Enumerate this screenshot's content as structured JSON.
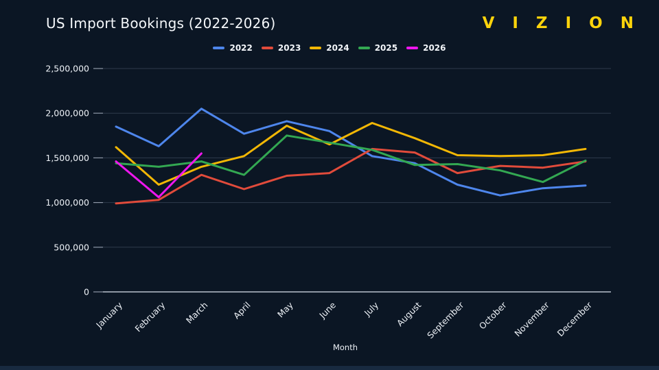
{
  "header": {
    "title": "US Import Bookings (2022-2026)",
    "logo": "V I Z I O N"
  },
  "colors": {
    "background": "#0b1624",
    "footer_strip": "#182a40",
    "grid": "#2f3b4c",
    "axis_line": "#b9c2ce",
    "tick": "#8f99a8",
    "label_text": "#eef2f7",
    "logo_yellow": "#fcd30b"
  },
  "chart_data": {
    "type": "line",
    "title": "US Import Bookings (2022-2026)",
    "xlabel": "Month",
    "ylabel": "",
    "x": [
      "January",
      "February",
      "March",
      "April",
      "May",
      "June",
      "July",
      "August",
      "September",
      "October",
      "November",
      "December"
    ],
    "yticks": [
      0,
      500000,
      1000000,
      1500000,
      2000000,
      2500000
    ],
    "ylim": [
      0,
      2500000
    ],
    "grid": true,
    "legend_position": "top",
    "series": [
      {
        "name": "2022",
        "color": "#4e86ec",
        "values": [
          1850000,
          1630000,
          2050000,
          1770000,
          1910000,
          1800000,
          1520000,
          1440000,
          1200000,
          1080000,
          1160000,
          1190000
        ]
      },
      {
        "name": "2023",
        "color": "#e14b3b",
        "values": [
          990000,
          1030000,
          1310000,
          1150000,
          1300000,
          1330000,
          1600000,
          1560000,
          1330000,
          1410000,
          1390000,
          1460000
        ]
      },
      {
        "name": "2024",
        "color": "#f2b705",
        "values": [
          1620000,
          1200000,
          1400000,
          1520000,
          1860000,
          1650000,
          1890000,
          1720000,
          1530000,
          1520000,
          1530000,
          1600000
        ]
      },
      {
        "name": "2025",
        "color": "#33a852",
        "values": [
          1440000,
          1400000,
          1460000,
          1310000,
          1750000,
          1670000,
          1590000,
          1420000,
          1430000,
          1360000,
          1230000,
          1470000
        ]
      },
      {
        "name": "2026",
        "color": "#ee16ee",
        "values": [
          1460000,
          1060000,
          1550000
        ]
      }
    ]
  }
}
